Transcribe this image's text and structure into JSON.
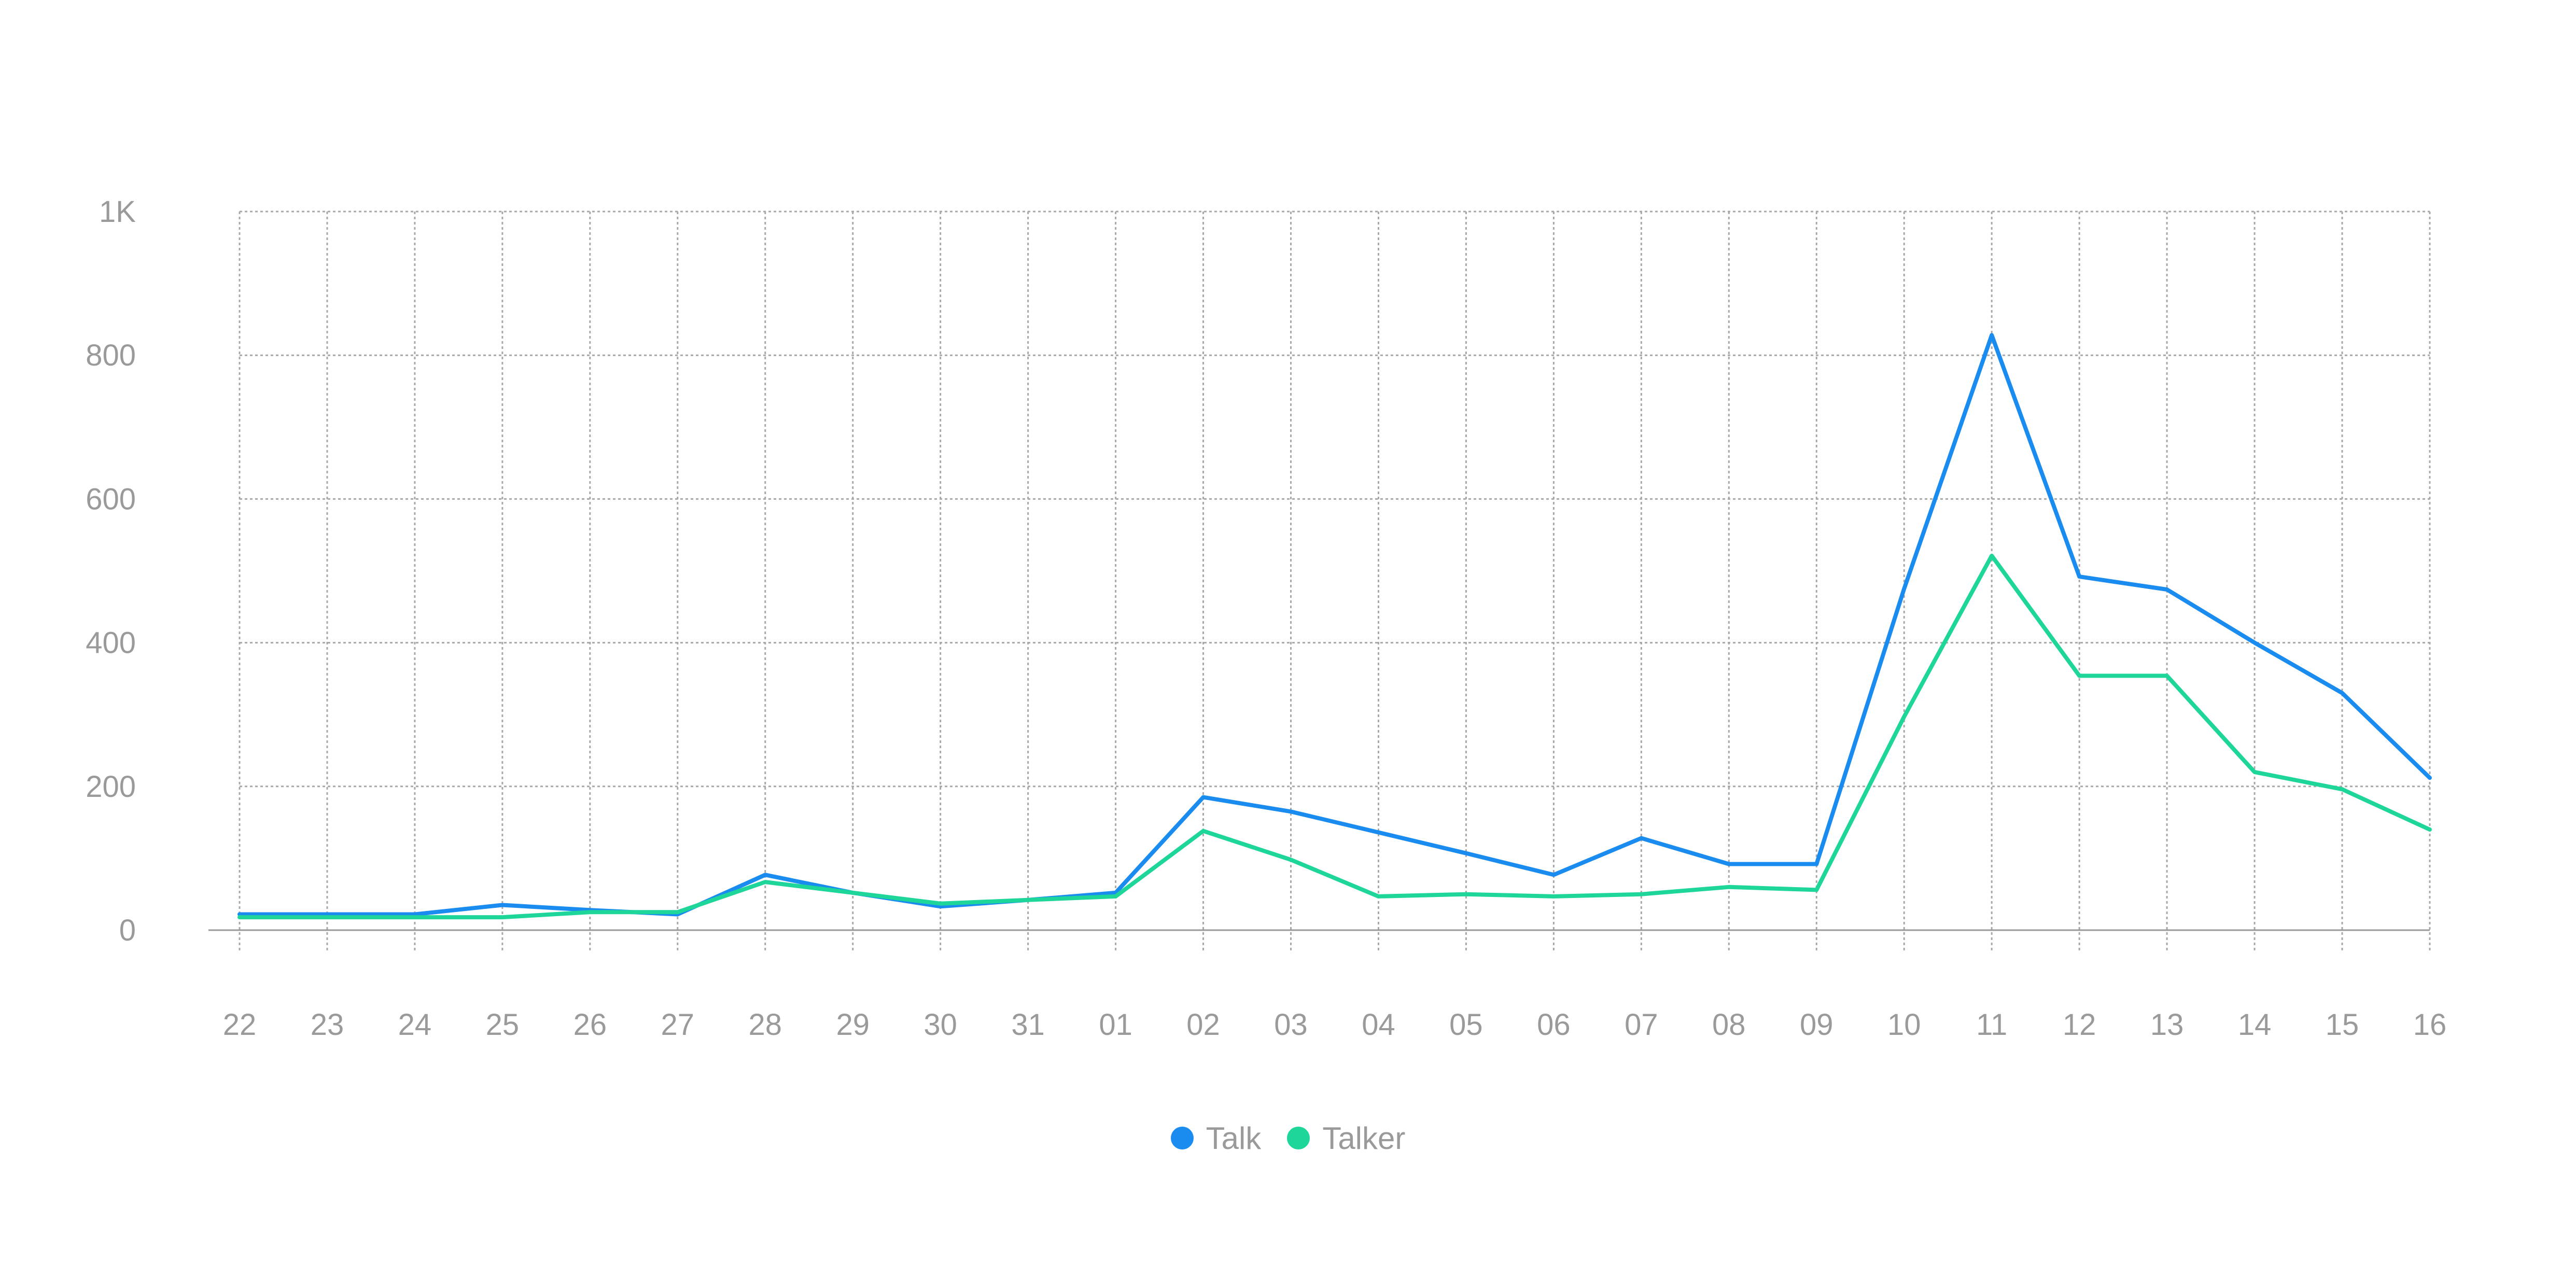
{
  "chart_data": {
    "type": "line",
    "categories": [
      "22",
      "23",
      "24",
      "25",
      "26",
      "27",
      "28",
      "29",
      "30",
      "31",
      "01",
      "02",
      "03",
      "04",
      "05",
      "06",
      "07",
      "08",
      "09",
      "10",
      "11",
      "12",
      "13",
      "14",
      "15",
      "16"
    ],
    "y_ticks": [
      "0",
      "200",
      "400",
      "600",
      "800",
      "1K"
    ],
    "ylim": [
      0,
      1000
    ],
    "grid": true,
    "legend_position": "bottom",
    "series": [
      {
        "name": "Talk",
        "color": "#1a8cf0",
        "values": [
          22,
          22,
          22,
          35,
          28,
          22,
          77,
          52,
          33,
          42,
          52,
          185,
          165,
          136,
          107,
          77,
          128,
          92,
          92,
          475,
          828,
          492,
          474,
          400,
          330,
          212
        ]
      },
      {
        "name": "Talker",
        "color": "#1fd69a",
        "values": [
          18,
          18,
          18,
          18,
          25,
          25,
          67,
          52,
          37,
          42,
          47,
          138,
          98,
          47,
          50,
          47,
          50,
          60,
          56,
          297,
          521,
          354,
          354,
          220,
          196,
          140
        ]
      }
    ]
  }
}
